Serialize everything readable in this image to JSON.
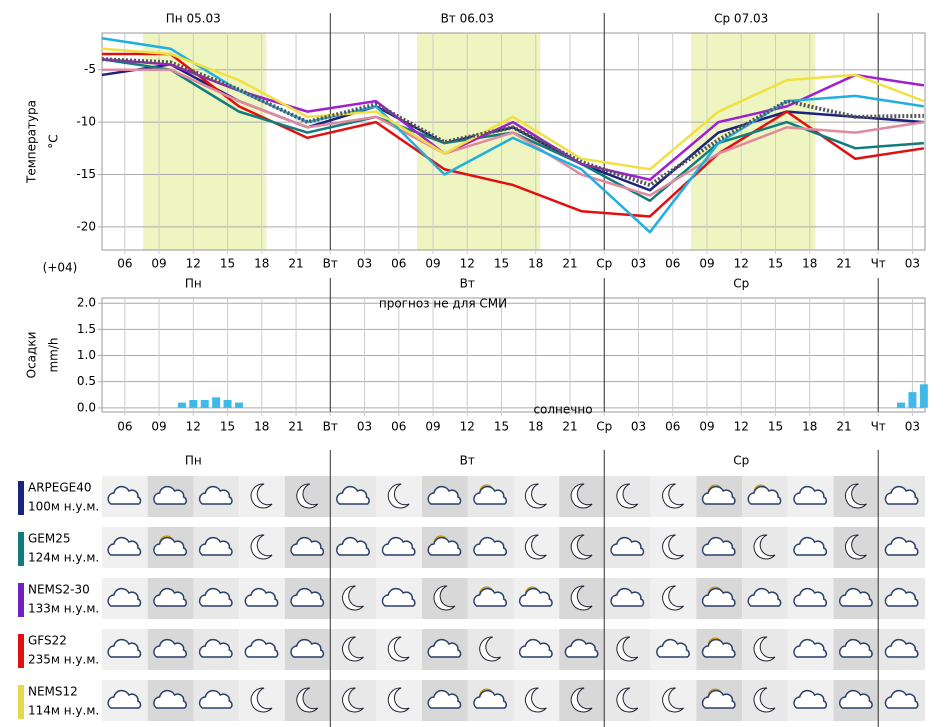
{
  "chart_data": [
    {
      "type": "line",
      "y_label": "Температура",
      "y_unit": "°C",
      "timezone": "(+04)",
      "days": [
        {
          "label": "Пн 05.03",
          "x": 12
        },
        {
          "label": "Вт 06.03",
          "x": 36
        },
        {
          "label": "Ср 07.03",
          "x": 60
        }
      ],
      "daylight": [
        [
          7.6,
          18.4
        ],
        [
          31.6,
          42.4
        ],
        [
          55.6,
          66.5
        ]
      ],
      "day_starts": [
        24,
        48,
        72
      ],
      "xlim": [
        4,
        76.1
      ],
      "ylim": [
        -22.2,
        -1.5
      ],
      "xticks": [
        {
          "value": 6,
          "label": "06"
        },
        {
          "value": 9,
          "label": "09"
        },
        12,
        15,
        18,
        21,
        {
          "value": 24,
          "label": "Вт"
        },
        {
          "value": 27,
          "label": "03"
        },
        {
          "value": 30,
          "label": "06"
        },
        {
          "value": 33,
          "label": "09"
        },
        {
          "value": 36,
          "label": "12"
        },
        {
          "value": 39,
          "label": "15"
        },
        {
          "value": 42,
          "label": "18"
        },
        {
          "value": 45,
          "label": "21"
        },
        {
          "value": 48,
          "label": "Ср"
        },
        {
          "value": 51,
          "label": "03"
        },
        {
          "value": 54,
          "label": "06"
        },
        {
          "value": 57,
          "label": "09"
        },
        {
          "value": 60,
          "label": "12"
        },
        {
          "value": 63,
          "label": "15"
        },
        {
          "value": 66,
          "label": "18"
        },
        {
          "value": 69,
          "label": "21"
        },
        {
          "value": 72,
          "label": "Чт"
        },
        {
          "value": 75,
          "label": "03"
        }
      ],
      "yticks": [
        -5,
        -10,
        -15,
        -20
      ],
      "x": [
        4,
        10,
        16,
        22,
        28,
        34,
        40,
        46,
        52,
        58,
        64,
        70,
        76
      ],
      "series": [
        {
          "color": "#1a237e",
          "values": [
            -5.5,
            -4.5,
            -8,
            -10.5,
            -8.5,
            -12,
            -10.5,
            -14,
            -16.5,
            -11,
            -9,
            -9.5,
            -10
          ]
        },
        {
          "color": "#e01010",
          "values": [
            -3.5,
            -3.5,
            -8.5,
            -11.5,
            -10,
            -14.5,
            -16,
            -18.5,
            -19,
            -13,
            -9,
            -13.5,
            -12.5
          ]
        },
        {
          "color": "#107c7c",
          "values": [
            -4,
            -5,
            -9,
            -11,
            -9.5,
            -12,
            -11,
            -14,
            -17.5,
            -12,
            -10,
            -12.5,
            -12
          ]
        },
        {
          "color": "#a020d0",
          "values": [
            -4,
            -4.5,
            -7,
            -9,
            -8,
            -13,
            -10,
            -14,
            -15.5,
            -10,
            -8.5,
            -5.5,
            -6.5
          ]
        },
        {
          "color": "#e08aa0",
          "values": [
            -5,
            -5,
            -8,
            -10.5,
            -9.5,
            -13,
            -11,
            -15,
            -17,
            -13,
            -10.5,
            -11,
            -10
          ]
        },
        {
          "color": "#20b0e0",
          "values": [
            -2,
            -3,
            -7,
            -10,
            -8.5,
            -15,
            -11.5,
            -14.5,
            -20.5,
            -12,
            -8,
            -7.5,
            -8.5
          ]
        },
        {
          "color": "#f0e040",
          "values": [
            -3,
            -3.5,
            -6,
            -9.5,
            -9,
            -13,
            -9.5,
            -13.5,
            -14.5,
            -9,
            -6,
            -5.5,
            -8
          ]
        },
        {
          "color": "#555555",
          "dashed": true,
          "values": [
            -4,
            -4.3,
            -6.9,
            -10,
            -8.3,
            -11.9,
            -10.5,
            -13.8,
            -16,
            -11.7,
            -8,
            -9.5,
            -9.4
          ]
        }
      ]
    },
    {
      "type": "bar",
      "y_label": "Осадки",
      "y_unit": "mm/h",
      "days": [
        {
          "label": "Пн",
          "x": 12
        },
        {
          "label": "Вт",
          "x": 36
        },
        {
          "label": "Ср",
          "x": 60
        }
      ],
      "note": "прогноз не для СМИ",
      "annotation": "солнечно",
      "xlim": [
        4,
        76.1
      ],
      "ylim": [
        -0.08,
        2.1
      ],
      "yticks": [
        {
          "value": 0,
          "label": "0.0"
        },
        {
          "value": 0.5,
          "label": "0.5"
        },
        {
          "value": 1,
          "label": "1.0"
        },
        {
          "value": 1.5,
          "label": "1.5"
        },
        {
          "value": 2,
          "label": "2.0"
        }
      ],
      "color": "#40b8e8",
      "x": [
        11,
        12,
        13,
        14,
        15,
        16,
        74,
        75,
        76
      ],
      "values": [
        0.1,
        0.15,
        0.15,
        0.2,
        0.15,
        0.1,
        0.1,
        0.3,
        0.45
      ]
    }
  ],
  "icons": {
    "days": [
      "Пн",
      "Вт",
      "Ср"
    ],
    "models": [
      {
        "name": "ARPEGE40",
        "altitude": "100м н.у.м.",
        "color": "#1a237e"
      },
      {
        "name": "GEM25",
        "altitude": "124м н.у.м.",
        "color": "#107c7c"
      },
      {
        "name": "NEMS2-30",
        "altitude": "133м н.у.м.",
        "color": "#7020c0"
      },
      {
        "name": "GFS22",
        "altitude": "235м н.у.м.",
        "color": "#e01010"
      },
      {
        "name": "NEMS12",
        "altitude": "114м н.у.м.",
        "color": "#e6d84a"
      }
    ]
  }
}
